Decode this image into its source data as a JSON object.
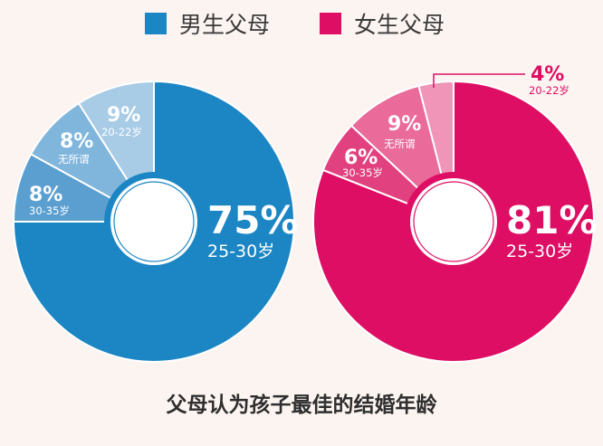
{
  "chart_data": [
    {
      "type": "pie",
      "series_name": "男生父母",
      "color": "#1c86c4",
      "slices": [
        {
          "label": "25-30岁",
          "value": 75,
          "percent_text": "75%",
          "color": "#1c86c4"
        },
        {
          "label": "30-35岁",
          "value": 8,
          "percent_text": "8%",
          "color": "#5a9fd0"
        },
        {
          "label": "无所谓",
          "value": 8,
          "percent_text": "8%",
          "color": "#80b5dc"
        },
        {
          "label": "20-22岁",
          "value": 9,
          "percent_text": "9%",
          "color": "#a8cbe6"
        }
      ]
    },
    {
      "type": "pie",
      "series_name": "女生父母",
      "color": "#dd0e63",
      "slices": [
        {
          "label": "25-30岁",
          "value": 81,
          "percent_text": "81%",
          "color": "#dd0e63"
        },
        {
          "label": "30-35岁",
          "value": 6,
          "percent_text": "6%",
          "color": "#e2417f"
        },
        {
          "label": "无所谓",
          "value": 9,
          "percent_text": "9%",
          "color": "#ea6a9a"
        },
        {
          "label": "20-22岁",
          "value": 4,
          "percent_text": "4%",
          "color": "#f095b8"
        }
      ]
    }
  ],
  "legend": [
    {
      "label": "男生父母",
      "color": "#1c86c4"
    },
    {
      "label": "女生父母",
      "color": "#dd0e63"
    }
  ],
  "caption": "父母认为孩子最佳的结婚年龄"
}
